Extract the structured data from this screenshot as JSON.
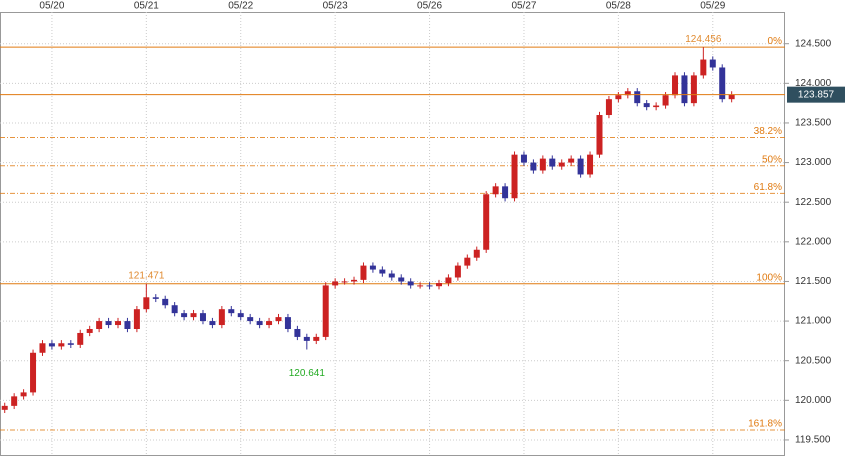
{
  "chart_data": {
    "type": "candlestick",
    "up_color": "#cc2222",
    "down_color": "#333399",
    "xlim": [
      -0.55,
      7.765
    ],
    "xticks": [
      {
        "value": 0,
        "label": "05/20"
      },
      {
        "value": 1,
        "label": "05/21"
      },
      {
        "value": 2,
        "label": "05/22"
      },
      {
        "value": 3,
        "label": "05/23"
      },
      {
        "value": 4,
        "label": "05/26"
      },
      {
        "value": 5,
        "label": "05/27"
      },
      {
        "value": 6,
        "label": "05/28"
      },
      {
        "value": 7,
        "label": "05/29"
      }
    ],
    "ylim": [
      119.31,
      124.9
    ],
    "yticks": [
      {
        "value": 119.5,
        "label": "119.500"
      },
      {
        "value": 120,
        "label": "120.000"
      },
      {
        "value": 120.5,
        "label": "120.500"
      },
      {
        "value": 121,
        "label": "121.000"
      },
      {
        "value": 121.5,
        "label": "121.500"
      },
      {
        "value": 122,
        "label": "122.000"
      },
      {
        "value": 122.5,
        "label": "122.500"
      },
      {
        "value": 123,
        "label": "123.000"
      },
      {
        "value": 123.5,
        "label": "123.500"
      },
      {
        "value": 124,
        "label": "124.000"
      },
      {
        "value": 124.5,
        "label": "124.500"
      }
    ],
    "grid": true,
    "x": [
      -0.5,
      -0.4,
      -0.3,
      -0.2,
      -0.1,
      0,
      0.1,
      0.2,
      0.3,
      0.4,
      0.5,
      0.6,
      0.7,
      0.8,
      0.9,
      1,
      1.1,
      1.2,
      1.3,
      1.4,
      1.5,
      1.6,
      1.7,
      1.8,
      1.9,
      2,
      2.1,
      2.2,
      2.3,
      2.4,
      2.5,
      2.6,
      2.7,
      2.8,
      2.9,
      3,
      3.1,
      3.2,
      3.3,
      3.4,
      3.5,
      3.6,
      3.7,
      3.8,
      3.9,
      4,
      4.1,
      4.2,
      4.3,
      4.4,
      4.5,
      4.6,
      4.7,
      4.8,
      4.9,
      5,
      5.1,
      5.2,
      5.3,
      5.4,
      5.5,
      5.6,
      5.7,
      5.8,
      5.9,
      6,
      6.1,
      6.2,
      6.3,
      6.4,
      6.5,
      6.6,
      6.7,
      6.8,
      6.9,
      7,
      7.1,
      7.2
    ],
    "open": [
      119.88,
      119.93,
      120.05,
      120.1,
      120.6,
      120.72,
      120.68,
      120.72,
      120.7,
      120.85,
      120.9,
      121.0,
      120.95,
      121.0,
      120.9,
      121.15,
      121.3,
      121.28,
      121.2,
      121.1,
      121.05,
      121.1,
      121.0,
      120.95,
      121.15,
      121.1,
      121.05,
      121.0,
      120.95,
      121.0,
      121.05,
      120.9,
      120.8,
      120.75,
      120.8,
      121.45,
      121.5,
      121.5,
      121.52,
      121.7,
      121.65,
      121.6,
      121.55,
      121.5,
      121.45,
      121.45,
      121.44,
      121.48,
      121.55,
      121.7,
      121.8,
      121.9,
      122.6,
      122.7,
      122.55,
      123.1,
      123.0,
      122.9,
      123.05,
      122.95,
      123.0,
      123.05,
      122.85,
      123.1,
      123.6,
      123.8,
      123.85,
      123.9,
      123.75,
      123.7,
      123.72,
      123.85,
      124.1,
      123.75,
      124.1,
      124.3,
      124.2,
      123.8
    ],
    "high": [
      119.97,
      120.09,
      120.14,
      120.64,
      120.76,
      120.76,
      120.76,
      120.76,
      120.89,
      120.94,
      121.04,
      121.04,
      121.04,
      121.04,
      121.19,
      121.471,
      121.34,
      121.32,
      121.24,
      121.14,
      121.14,
      121.14,
      121.04,
      121.19,
      121.19,
      121.14,
      121.09,
      121.04,
      121.04,
      121.09,
      121.09,
      120.94,
      120.84,
      120.84,
      121.49,
      121.54,
      121.54,
      121.56,
      121.74,
      121.74,
      121.69,
      121.64,
      121.59,
      121.54,
      121.49,
      121.49,
      121.52,
      121.59,
      121.74,
      121.84,
      121.94,
      122.64,
      122.74,
      122.74,
      123.14,
      123.14,
      123.04,
      123.09,
      123.09,
      123.04,
      123.09,
      123.09,
      123.14,
      123.64,
      123.84,
      123.89,
      123.94,
      123.94,
      123.79,
      123.76,
      123.89,
      124.14,
      124.14,
      124.14,
      124.456,
      124.34,
      124.24,
      123.9
    ],
    "low": [
      119.84,
      119.89,
      120.01,
      120.06,
      120.56,
      120.64,
      120.64,
      120.66,
      120.66,
      120.81,
      120.86,
      120.91,
      120.91,
      120.86,
      120.86,
      121.11,
      121.24,
      121.16,
      121.06,
      121.01,
      121.01,
      120.96,
      120.91,
      120.91,
      121.06,
      121.01,
      120.96,
      120.91,
      120.91,
      120.96,
      120.86,
      120.76,
      120.641,
      120.71,
      120.76,
      121.41,
      121.46,
      121.46,
      121.48,
      121.61,
      121.56,
      121.51,
      121.46,
      121.41,
      121.41,
      121.4,
      121.4,
      121.44,
      121.51,
      121.66,
      121.76,
      121.86,
      122.56,
      122.51,
      122.51,
      122.96,
      122.86,
      122.86,
      122.91,
      122.91,
      122.96,
      122.81,
      122.81,
      123.06,
      123.56,
      123.76,
      123.81,
      123.71,
      123.66,
      123.66,
      123.68,
      123.81,
      123.71,
      123.71,
      124.06,
      124.16,
      123.76,
      123.76
    ],
    "close": [
      119.93,
      120.05,
      120.1,
      120.6,
      120.72,
      120.68,
      120.72,
      120.7,
      120.85,
      120.9,
      121.0,
      120.95,
      121.0,
      120.9,
      121.15,
      121.3,
      121.28,
      121.2,
      121.1,
      121.05,
      121.1,
      121.0,
      120.95,
      121.15,
      121.1,
      121.05,
      121.0,
      120.95,
      121.0,
      121.05,
      120.9,
      120.8,
      120.75,
      120.8,
      121.45,
      121.5,
      121.5,
      121.52,
      121.7,
      121.65,
      121.6,
      121.55,
      121.5,
      121.45,
      121.45,
      121.44,
      121.48,
      121.55,
      121.7,
      121.8,
      121.9,
      122.6,
      122.7,
      122.55,
      123.1,
      123.0,
      122.9,
      123.05,
      122.95,
      123.0,
      123.05,
      122.85,
      123.1,
      123.6,
      123.8,
      123.85,
      123.9,
      123.75,
      123.7,
      123.72,
      123.85,
      124.1,
      123.75,
      124.1,
      124.3,
      124.2,
      123.8,
      123.857
    ],
    "level_color": "#e07a10",
    "levels": [
      {
        "label": "0%",
        "value": 124.456,
        "solid": true
      },
      {
        "label": "38.2%",
        "value": 123.316,
        "solid": false
      },
      {
        "label": "50%",
        "value": 122.96,
        "solid": false
      },
      {
        "label": "61.8%",
        "value": 122.611,
        "solid": false
      },
      {
        "label": "100%",
        "value": 121.471,
        "solid": true
      },
      {
        "label": "161.8%",
        "value": 119.626,
        "solid": false
      }
    ],
    "current_price": {
      "label": "123.857",
      "value": 123.857,
      "color": "#2f4f5f"
    },
    "annotations": [
      {
        "label": "124.456",
        "value": 124.456,
        "x": 6.9,
        "color": "#e08a30",
        "below": false
      },
      {
        "label": "121.471",
        "value": 121.471,
        "x": 1.0,
        "color": "#e08a30",
        "below": false
      },
      {
        "label": "120.641",
        "value": 120.641,
        "x": 2.7,
        "color": "#22aa22",
        "below": true
      }
    ]
  }
}
